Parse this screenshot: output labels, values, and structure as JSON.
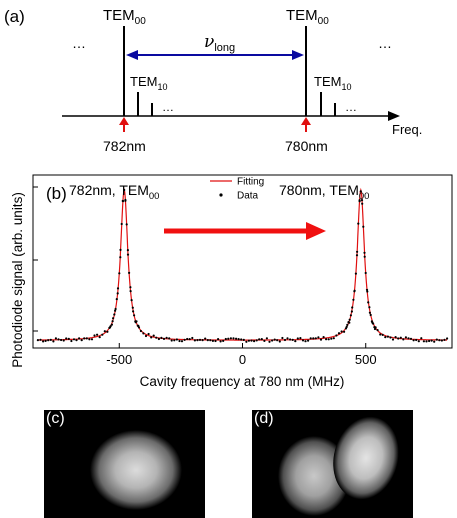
{
  "panel_a": {
    "label": "(a)",
    "ellipsis_left": "…",
    "ellipsis_right": "…",
    "ellipsis_small_1": "…",
    "ellipsis_small_2": "…",
    "tem00_left": {
      "base": "TEM",
      "sub": "00"
    },
    "tem00_right": {
      "base": "TEM",
      "sub": "00"
    },
    "tem10_left": {
      "base": "TEM",
      "sub": "10"
    },
    "tem10_right": {
      "base": "TEM",
      "sub": "10"
    },
    "nu_long": {
      "base": "ν",
      "sub": "long"
    },
    "freq_axis_label": "Freq.",
    "wavelength_left": "782nm",
    "wavelength_right": "780nm",
    "colors": {
      "arrow_double": "#0a0aa0",
      "marker_arrow": "#e01010"
    }
  },
  "panel_b": {
    "label": "(b)",
    "ylabel": "Photodiode signal (arb. units)",
    "xlabel": "Cavity frequency at 780 nm (MHz)",
    "peak_left_label": {
      "base": "782nm, TEM",
      "sub": "00"
    },
    "peak_right_label": {
      "base": "780nm, TEM",
      "sub": "00"
    },
    "legend": {
      "fitting": "Fitting",
      "data": "Data"
    },
    "colors": {
      "fit": "#e01010",
      "data": "#000000",
      "arrow": "#f01010"
    }
  },
  "chart_data": {
    "type": "line",
    "title": "",
    "xlabel": "Cavity frequency at 780 nm (MHz)",
    "ylabel": "Photodiode signal (arb. units)",
    "xlim": [
      -850,
      850
    ],
    "x_ticks": [
      -500,
      0,
      500
    ],
    "x_tick_labels": [
      "-500",
      "0",
      "500"
    ],
    "ylim": [
      -0.05,
      1.1
    ],
    "grid": false,
    "legend_position": "top-center",
    "series": [
      {
        "name": "Fitting",
        "kind": "line",
        "color": "#e01010",
        "model": "lorentzian",
        "peaks": [
          {
            "center": -480,
            "hwhm": 18,
            "amp": 1.0
          },
          {
            "center": 480,
            "hwhm": 18,
            "amp": 1.0
          }
        ],
        "baseline": 0.0
      },
      {
        "name": "Data",
        "kind": "scatter",
        "color": "#000000",
        "x_range": [
          -850,
          850
        ],
        "point_count": 160
      }
    ]
  },
  "panel_c": {
    "label": "(c)"
  },
  "panel_d": {
    "label": "(d)"
  }
}
